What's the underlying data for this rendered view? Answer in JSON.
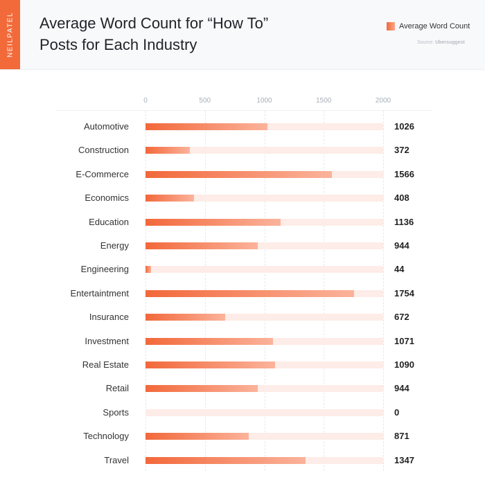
{
  "brand": "NEILPATEL",
  "title_line1": "Average Word Count for “How To”",
  "title_line2": "Posts for Each Industry",
  "legend_label": "Average Word Count",
  "source_prefix": "Source:",
  "source_name": "Ubersuggest",
  "colors": {
    "brand": "#f26a3a",
    "bar_start": "#f2683a",
    "bar_end": "#fbb39b",
    "track": "#fdece7"
  },
  "chart_data": {
    "type": "bar",
    "orientation": "horizontal",
    "title": "Average Word Count for “How To” Posts for Each Industry",
    "xlabel": "",
    "ylabel": "",
    "xlim": [
      0,
      2000
    ],
    "x_ticks": [
      "0",
      "500",
      "1000",
      "1500",
      "2000"
    ],
    "grid": true,
    "legend": [
      "Average Word Count"
    ],
    "legend_position": "top-right",
    "categories": [
      "Automotive",
      "Construction",
      "E-Commerce",
      "Economics",
      "Education",
      "Energy",
      "Engineering",
      "Entertaintment",
      "Insurance",
      "Investment",
      "Real Estate",
      "Retail",
      "Sports",
      "Technology",
      "Travel"
    ],
    "values": [
      1026,
      372,
      1566,
      408,
      1136,
      944,
      44,
      1754,
      672,
      1071,
      1090,
      944,
      0,
      871,
      1347
    ]
  }
}
